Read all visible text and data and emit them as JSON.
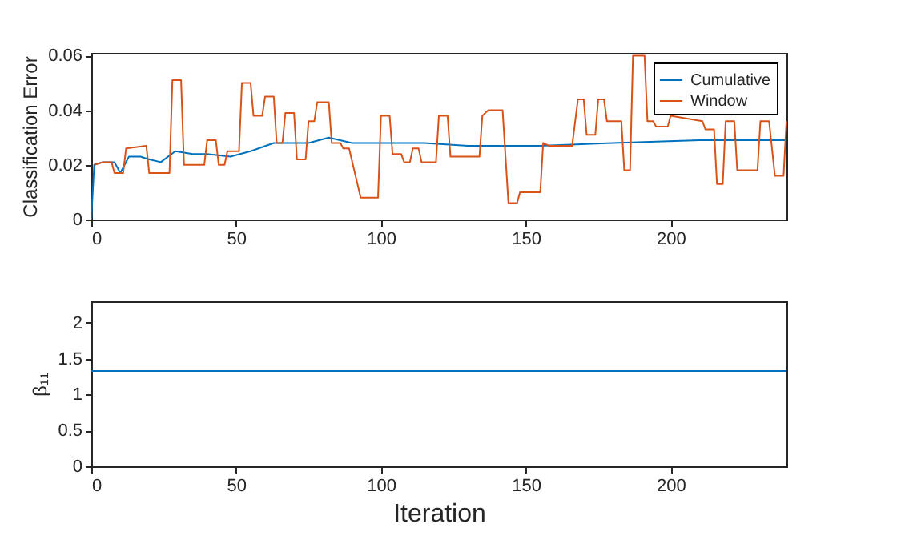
{
  "chart_data": [
    {
      "type": "line",
      "ylabel": "Classification Error",
      "xlim": [
        0,
        240
      ],
      "xticks": [
        0,
        50,
        100,
        150,
        200
      ],
      "ylim": [
        0,
        0.061
      ],
      "yticks": [
        0,
        0.02,
        0.04,
        0.06
      ],
      "grid": false,
      "legend": "top right",
      "line_style": "solid",
      "series": [
        {
          "name": "Cumulative",
          "color": "#0072bd",
          "x": [
            0,
            1,
            4,
            8,
            10,
            13,
            17,
            20,
            24,
            29,
            35,
            40,
            48,
            55,
            63,
            70,
            75,
            82,
            90,
            100,
            115,
            130,
            155,
            180,
            210,
            240
          ],
          "values": [
            0,
            0.02,
            0.021,
            0.021,
            0.017,
            0.023,
            0.023,
            0.022,
            0.021,
            0.025,
            0.024,
            0.024,
            0.023,
            0.025,
            0.028,
            0.028,
            0.028,
            0.03,
            0.028,
            0.028,
            0.028,
            0.027,
            0.027,
            0.028,
            0.029,
            0.029
          ]
        },
        {
          "name": "Window",
          "color": "#d95319",
          "x": [
            1,
            4,
            7,
            8,
            11,
            12,
            19,
            20,
            27,
            28,
            31,
            32,
            39,
            40,
            43,
            44,
            46,
            47,
            51,
            52,
            55,
            56,
            59,
            60,
            63,
            64,
            66,
            67,
            70,
            71,
            74,
            75,
            77,
            78,
            82,
            83,
            86,
            87,
            89,
            93,
            99,
            100,
            103,
            104,
            107,
            108,
            110,
            111,
            113,
            114,
            119,
            120,
            123,
            124,
            134,
            135,
            137,
            142,
            144,
            147,
            148,
            155,
            156,
            158,
            166,
            168,
            170,
            171,
            174,
            175,
            177,
            178,
            183,
            184,
            186,
            187,
            191,
            192,
            194,
            195,
            199,
            200,
            211,
            212,
            215,
            216,
            218,
            219,
            222,
            223,
            230,
            231,
            234,
            236,
            239,
            240
          ],
          "values": [
            0.02,
            0.021,
            0.021,
            0.017,
            0.017,
            0.026,
            0.027,
            0.017,
            0.017,
            0.051,
            0.051,
            0.02,
            0.02,
            0.029,
            0.029,
            0.02,
            0.02,
            0.025,
            0.025,
            0.05,
            0.05,
            0.038,
            0.038,
            0.045,
            0.045,
            0.028,
            0.028,
            0.039,
            0.039,
            0.022,
            0.022,
            0.036,
            0.036,
            0.043,
            0.043,
            0.028,
            0.028,
            0.026,
            0.026,
            0.008,
            0.008,
            0.038,
            0.038,
            0.024,
            0.024,
            0.021,
            0.021,
            0.026,
            0.026,
            0.021,
            0.021,
            0.038,
            0.038,
            0.023,
            0.023,
            0.038,
            0.04,
            0.04,
            0.006,
            0.006,
            0.01,
            0.01,
            0.028,
            0.027,
            0.027,
            0.044,
            0.044,
            0.031,
            0.031,
            0.044,
            0.044,
            0.036,
            0.036,
            0.018,
            0.018,
            0.06,
            0.06,
            0.036,
            0.036,
            0.034,
            0.034,
            0.038,
            0.036,
            0.033,
            0.033,
            0.013,
            0.013,
            0.036,
            0.036,
            0.018,
            0.018,
            0.036,
            0.036,
            0.016,
            0.016,
            0.036
          ]
        }
      ]
    },
    {
      "type": "line",
      "ylabel": "β₁₁",
      "xlabel": "Iteration",
      "xlim": [
        0,
        240
      ],
      "xticks": [
        0,
        50,
        100,
        150,
        200
      ],
      "ylim": [
        0,
        2.3
      ],
      "yticks": [
        0,
        0.5,
        1,
        1.5,
        2
      ],
      "grid": false,
      "legend": false,
      "line_style": "solid",
      "series": [
        {
          "color": "#0072bd",
          "x": [
            0,
            240
          ],
          "values": [
            1.33,
            1.33
          ]
        }
      ]
    }
  ]
}
